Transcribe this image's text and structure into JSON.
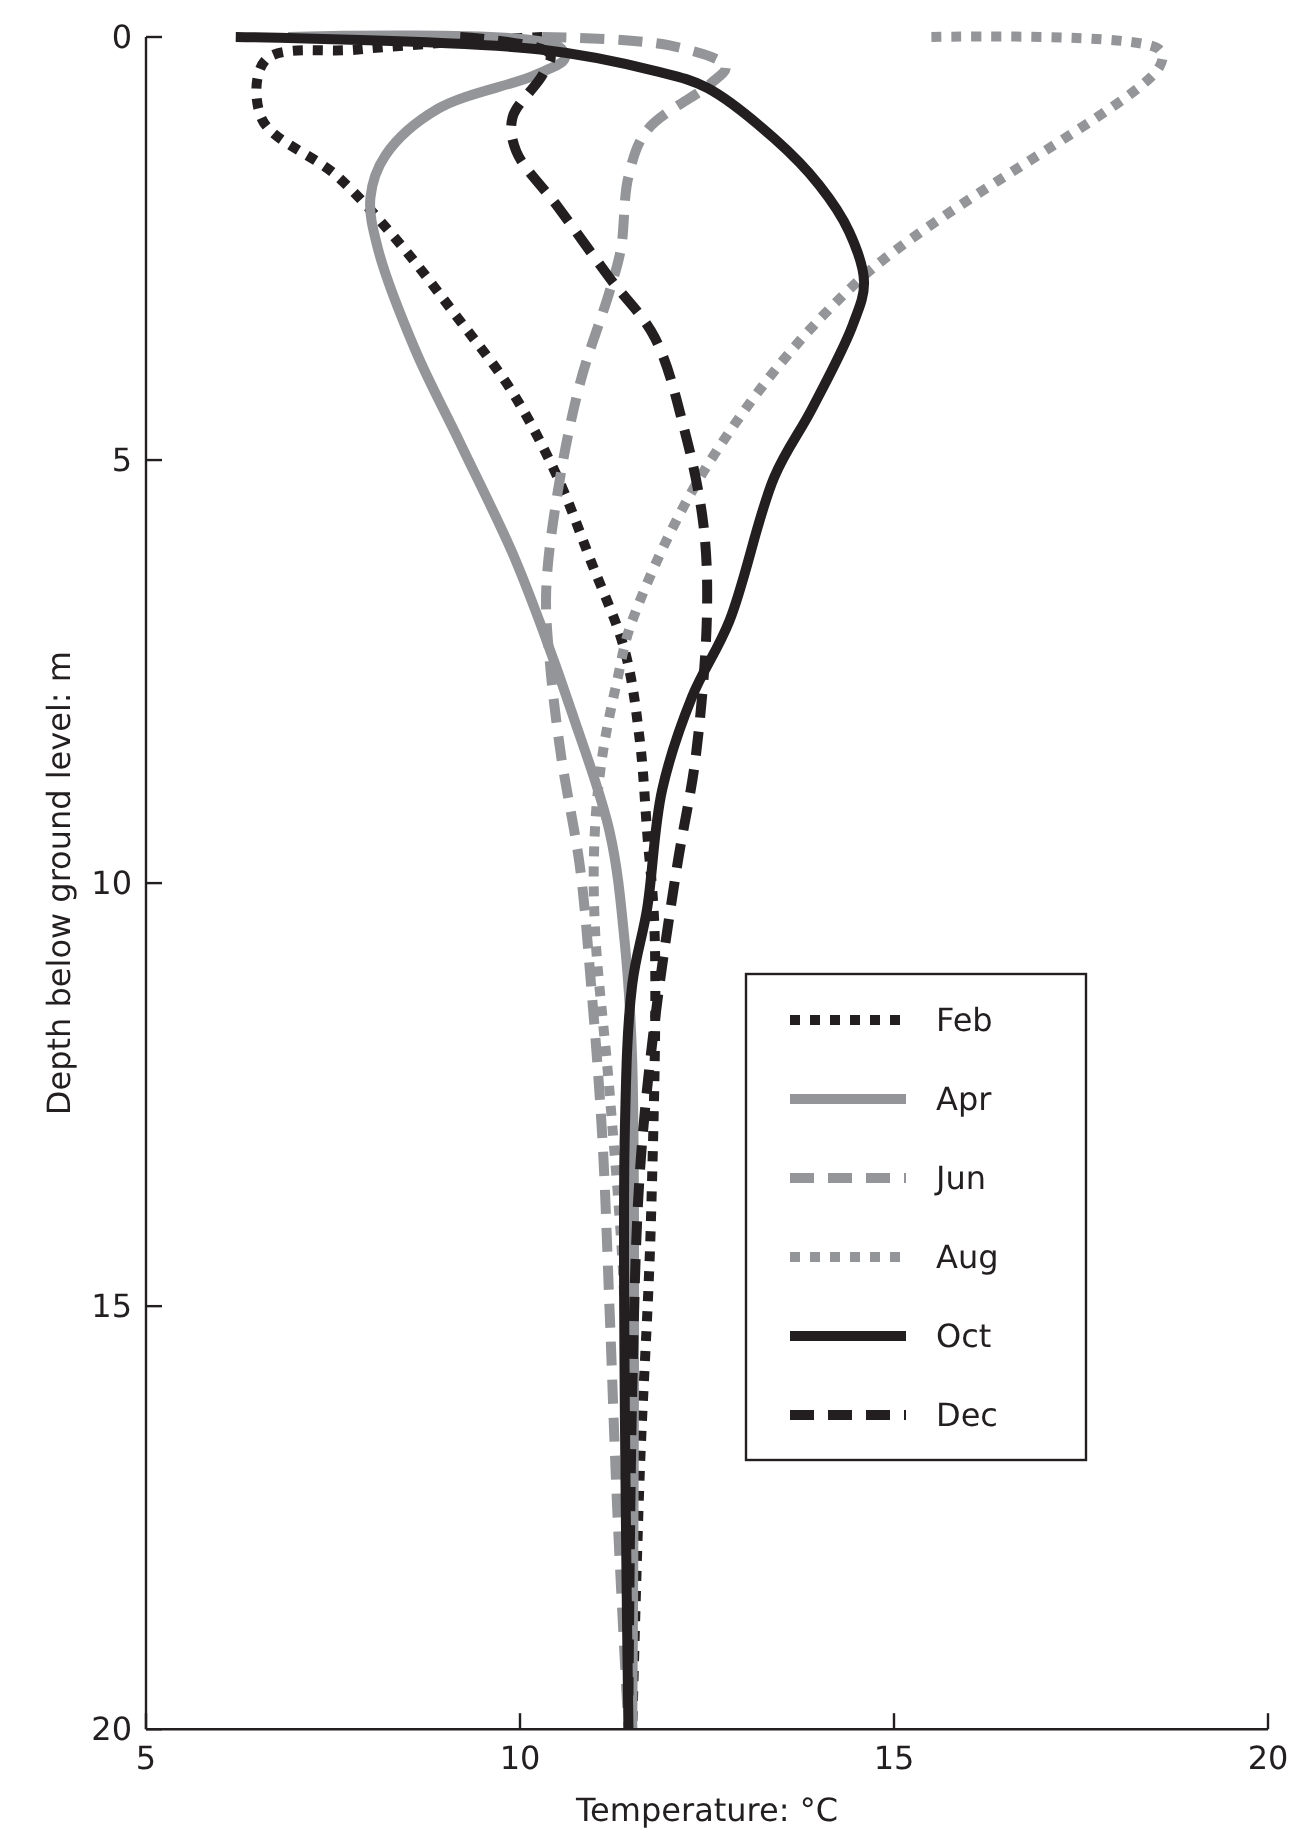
{
  "chart_data": {
    "type": "line",
    "xlabel": "Temperature: °C",
    "ylabel": "Depth below ground level: m",
    "xlim": [
      5,
      20
    ],
    "xticks": [
      5,
      10,
      15,
      20
    ],
    "ylim": [
      20,
      0
    ],
    "yticks": [
      0,
      5,
      10,
      15,
      20
    ],
    "grid": false,
    "legend": "right",
    "marker": "none",
    "series": [
      {
        "name": "Feb",
        "color": "#231f20",
        "line_style": "dotted",
        "x": [
          10.3,
          9.1,
          7.8,
          6.6,
          6.55,
          7.55,
          8.4,
          9.15,
          9.9,
          10.5,
          10.95,
          11.4,
          11.6,
          11.7,
          11.8,
          11.75,
          11.6,
          11.5
        ],
        "values": [
          0,
          0.06,
          0.15,
          0.27,
          0.97,
          1.64,
          2.45,
          3.3,
          4.2,
          5.2,
          6.2,
          7.25,
          8.3,
          9.4,
          10.6,
          14,
          17,
          20
        ]
      },
      {
        "name": "Apr",
        "color": "#939598",
        "line_style": "solid",
        "x": [
          6.9,
          10.5,
          10.6,
          10.2,
          8.9,
          8.2,
          8.0,
          8.1,
          8.6,
          9.2,
          9.9,
          10.3,
          10.7,
          11.2,
          11.4,
          11.5,
          11.5
        ],
        "values": [
          0,
          0.1,
          0.25,
          0.45,
          0.85,
          1.4,
          1.9,
          2.5,
          3.7,
          4.8,
          6.1,
          7.0,
          8.0,
          9.4,
          10.7,
          12.1,
          20
        ]
      },
      {
        "name": "Jun",
        "color": "#939598",
        "line_style": "dashed",
        "x": [
          10.3,
          12.0,
          12.75,
          12.55,
          11.7,
          11.45,
          11.35,
          11.2,
          10.8,
          10.5,
          10.35,
          10.4,
          10.55,
          10.8,
          10.95,
          11.1,
          11.2,
          11.3,
          11.45
        ],
        "values": [
          0,
          0.1,
          0.35,
          0.55,
          1.1,
          1.65,
          2.5,
          3.0,
          4.1,
          5.4,
          6.55,
          7.4,
          8.5,
          9.8,
          11.2,
          13.0,
          15.1,
          17.4,
          20
        ]
      },
      {
        "name": "Aug",
        "color": "#939598",
        "line_style": "dotted",
        "x": [
          15.5,
          18.55,
          18.55,
          14.5,
          12.55,
          11.5,
          11.3,
          11.1,
          11.0,
          11.0,
          11.2,
          11.4,
          11.5
        ],
        "values": [
          0,
          0.15,
          0.35,
          2.9,
          5.0,
          6.9,
          7.6,
          8.5,
          9.4,
          10.5,
          12.5,
          15,
          20
        ]
      },
      {
        "name": "Oct",
        "color": "#231f20",
        "line_style": "solid",
        "x": [
          6.2,
          10.3,
          11.8,
          12.5,
          13.4,
          14.0,
          14.4,
          14.6,
          14.45,
          13.9,
          13.4,
          12.8,
          12.3,
          11.9,
          11.7,
          11.5,
          11.4,
          11.45
        ],
        "values": [
          0,
          0.15,
          0.4,
          0.6,
          1.2,
          1.75,
          2.3,
          2.9,
          3.4,
          4.4,
          5.2,
          6.9,
          7.8,
          8.9,
          10.3,
          11.2,
          13.0,
          20
        ]
      },
      {
        "name": "Dec",
        "color": "#231f20",
        "line_style": "dashed",
        "x": [
          9.2,
          10.4,
          10.3,
          9.9,
          9.95,
          10.5,
          11.2,
          11.8,
          12.2,
          12.45,
          12.5,
          12.35,
          12.1,
          11.8,
          11.6,
          11.5,
          11.45
        ],
        "values": [
          0,
          0.2,
          0.45,
          0.95,
          1.35,
          2.0,
          2.85,
          3.55,
          4.65,
          5.75,
          6.8,
          8.5,
          9.8,
          11.65,
          13.45,
          16,
          19.6
        ]
      }
    ]
  }
}
